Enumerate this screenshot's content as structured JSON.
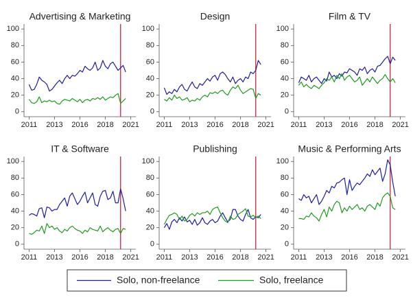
{
  "chart_data": [
    {
      "type": "line",
      "title": "Advertising & Marketing",
      "x": [
        2011,
        2011.25,
        2011.5,
        2011.75,
        2012,
        2012.25,
        2012.5,
        2012.75,
        2013,
        2013.25,
        2013.5,
        2013.75,
        2014,
        2014.25,
        2014.5,
        2014.75,
        2015,
        2015.25,
        2015.5,
        2015.75,
        2016,
        2016.25,
        2016.5,
        2016.75,
        2017,
        2017.25,
        2017.5,
        2017.75,
        2018,
        2018.25,
        2018.5,
        2018.75,
        2019,
        2019.25,
        2019.5,
        2019.75,
        2020,
        2020.25,
        2020.5
      ],
      "series": [
        {
          "name": "Solo, non-freelance",
          "color": "#1c1ca8",
          "values": [
            33,
            26,
            27,
            33,
            42,
            38,
            36,
            33,
            25,
            27,
            31,
            35,
            38,
            34,
            40,
            44,
            40,
            44,
            43,
            46,
            50,
            48,
            55,
            52,
            50,
            53,
            60,
            50,
            53,
            62,
            55,
            52,
            58,
            60,
            55,
            50,
            53,
            56,
            48
          ]
        },
        {
          "name": "Solo, freelance",
          "color": "#1e9a1e",
          "values": [
            15,
            11,
            10,
            12,
            18,
            11,
            13,
            12,
            14,
            12,
            13,
            10,
            9,
            13,
            15,
            14,
            13,
            16,
            14,
            12,
            15,
            11,
            14,
            15,
            13,
            16,
            15,
            17,
            15,
            18,
            14,
            16,
            18,
            17,
            20,
            22,
            10,
            13,
            16
          ]
        }
      ],
      "xlim": [
        2010.5,
        2021.5
      ],
      "xticks": [
        2011,
        {
          "value": 2013.5,
          "label": "2013"
        },
        2016,
        {
          "value": 2018.5,
          "label": "2018"
        },
        2021
      ],
      "ylim": [
        -6,
        106
      ],
      "yticks": [
        0,
        20,
        40,
        60,
        80,
        100
      ],
      "vline": 2020,
      "vline_color": "#c8102e"
    },
    {
      "type": "line",
      "title": "Design",
      "x": [
        2011,
        2011.25,
        2011.5,
        2011.75,
        2012,
        2012.25,
        2012.5,
        2012.75,
        2013,
        2013.25,
        2013.5,
        2013.75,
        2014,
        2014.25,
        2014.5,
        2014.75,
        2015,
        2015.25,
        2015.5,
        2015.75,
        2016,
        2016.25,
        2016.5,
        2016.75,
        2017,
        2017.25,
        2017.5,
        2017.75,
        2018,
        2018.25,
        2018.5,
        2018.75,
        2019,
        2019.25,
        2019.5,
        2019.75,
        2020,
        2020.25,
        2020.5
      ],
      "series": [
        {
          "name": "Solo, non-freelance",
          "color": "#1c1ca8",
          "values": [
            29,
            21,
            24,
            22,
            27,
            24,
            30,
            33,
            27,
            25,
            31,
            36,
            30,
            28,
            34,
            32,
            36,
            40,
            37,
            42,
            44,
            38,
            46,
            48,
            45,
            40,
            36,
            42,
            34,
            38,
            40,
            36,
            42,
            40,
            48,
            46,
            50,
            62,
            57
          ]
        },
        {
          "name": "Solo, freelance",
          "color": "#1e9a1e",
          "values": [
            15,
            13,
            17,
            14,
            20,
            16,
            18,
            14,
            15,
            17,
            12,
            14,
            13,
            16,
            14,
            18,
            20,
            18,
            23,
            22,
            24,
            22,
            25,
            26,
            22,
            20,
            26,
            30,
            28,
            32,
            26,
            22,
            24,
            26,
            28,
            27,
            16,
            22,
            20
          ]
        }
      ],
      "xlim": [
        2010.5,
        2021.5
      ],
      "xticks": [
        2011,
        {
          "value": 2013.5,
          "label": "2013"
        },
        2016,
        {
          "value": 2018.5,
          "label": "2018"
        },
        2021
      ],
      "ylim": [
        -6,
        106
      ],
      "yticks": [
        0,
        20,
        40,
        60,
        80,
        100
      ],
      "vline": 2020,
      "vline_color": "#c8102e"
    },
    {
      "type": "line",
      "title": "Film & TV",
      "x": [
        2011,
        2011.25,
        2011.5,
        2011.75,
        2012,
        2012.25,
        2012.5,
        2012.75,
        2013,
        2013.25,
        2013.5,
        2013.75,
        2014,
        2014.25,
        2014.5,
        2014.75,
        2015,
        2015.25,
        2015.5,
        2015.75,
        2016,
        2016.25,
        2016.5,
        2016.75,
        2017,
        2017.25,
        2017.5,
        2017.75,
        2018,
        2018.25,
        2018.5,
        2018.75,
        2019,
        2019.25,
        2019.5,
        2019.75,
        2020,
        2020.25,
        2020.5
      ],
      "series": [
        {
          "name": "Solo, non-freelance",
          "color": "#1c1ca8",
          "values": [
            35,
            42,
            40,
            38,
            44,
            36,
            40,
            42,
            38,
            34,
            40,
            37,
            48,
            42,
            44,
            40,
            46,
            43,
            48,
            47,
            52,
            50,
            48,
            44,
            52,
            50,
            54,
            46,
            50,
            52,
            48,
            55,
            56,
            60,
            64,
            67,
            58,
            66,
            62
          ]
        },
        {
          "name": "Solo, freelance",
          "color": "#1e9a1e",
          "values": [
            32,
            36,
            30,
            33,
            30,
            28,
            32,
            30,
            28,
            32,
            35,
            40,
            38,
            42,
            36,
            44,
            40,
            46,
            38,
            42,
            44,
            40,
            36,
            38,
            42,
            32,
            36,
            40,
            36,
            42,
            38,
            34,
            38,
            40,
            45,
            40,
            36,
            40,
            35
          ]
        }
      ],
      "xlim": [
        2010.5,
        2021.5
      ],
      "xticks": [
        2011,
        {
          "value": 2013.5,
          "label": "2013"
        },
        2016,
        {
          "value": 2018.5,
          "label": "2018"
        },
        2021
      ],
      "ylim": [
        -6,
        106
      ],
      "yticks": [
        0,
        20,
        40,
        60,
        80,
        100
      ],
      "vline": 2020,
      "vline_color": "#c8102e"
    },
    {
      "type": "line",
      "title": "IT & Software",
      "x": [
        2011,
        2011.25,
        2011.5,
        2011.75,
        2012,
        2012.25,
        2012.5,
        2012.75,
        2013,
        2013.25,
        2013.5,
        2013.75,
        2014,
        2014.25,
        2014.5,
        2014.75,
        2015,
        2015.25,
        2015.5,
        2015.75,
        2016,
        2016.25,
        2016.5,
        2016.75,
        2017,
        2017.25,
        2017.5,
        2017.75,
        2018,
        2018.25,
        2018.5,
        2018.75,
        2019,
        2019.25,
        2019.5,
        2019.75,
        2020,
        2020.25,
        2020.5
      ],
      "series": [
        {
          "name": "Solo, non-freelance",
          "color": "#1c1ca8",
          "values": [
            35,
            37,
            36,
            34,
            43,
            44,
            32,
            45,
            44,
            40,
            42,
            42,
            48,
            52,
            56,
            46,
            58,
            62,
            55,
            48,
            52,
            58,
            63,
            50,
            56,
            62,
            48,
            46,
            58,
            64,
            65,
            54,
            56,
            64,
            50,
            50,
            67,
            55,
            40
          ]
        },
        {
          "name": "Solo, freelance",
          "color": "#1e9a1e",
          "values": [
            13,
            12,
            14,
            17,
            16,
            22,
            13,
            25,
            20,
            22,
            18,
            20,
            16,
            14,
            18,
            16,
            20,
            22,
            19,
            17,
            16,
            13,
            17,
            15,
            20,
            18,
            17,
            16,
            22,
            15,
            18,
            20,
            17,
            15,
            18,
            19,
            13,
            19,
            18
          ]
        }
      ],
      "xlim": [
        2010.5,
        2021.5
      ],
      "xticks": [
        2011,
        {
          "value": 2013.5,
          "label": "2013"
        },
        2016,
        {
          "value": 2018.5,
          "label": "2018"
        },
        2021
      ],
      "ylim": [
        -6,
        106
      ],
      "yticks": [
        0,
        20,
        40,
        60,
        80,
        100
      ],
      "vline": 2020,
      "vline_color": "#c8102e"
    },
    {
      "type": "line",
      "title": "Publishing",
      "x": [
        2011,
        2011.25,
        2011.5,
        2011.75,
        2012,
        2012.25,
        2012.5,
        2012.75,
        2013,
        2013.25,
        2013.5,
        2013.75,
        2014,
        2014.25,
        2014.5,
        2014.75,
        2015,
        2015.25,
        2015.5,
        2015.75,
        2016,
        2016.25,
        2016.5,
        2016.75,
        2017,
        2017.25,
        2017.5,
        2017.75,
        2018,
        2018.25,
        2018.5,
        2018.75,
        2019,
        2019.25,
        2019.5,
        2019.75,
        2020,
        2020.25,
        2020.5
      ],
      "series": [
        {
          "name": "Solo, non-freelance",
          "color": "#1c1ca8",
          "values": [
            20,
            25,
            18,
            27,
            30,
            26,
            32,
            28,
            33,
            27,
            29,
            24,
            30,
            23,
            26,
            32,
            26,
            24,
            28,
            30,
            26,
            28,
            34,
            38,
            32,
            27,
            30,
            42,
            42,
            34,
            30,
            28,
            36,
            42,
            32,
            30,
            33,
            32,
            36
          ]
        },
        {
          "name": "Solo, freelance",
          "color": "#1e9a1e",
          "values": [
            24,
            30,
            35,
            36,
            38,
            36,
            30,
            34,
            28,
            30,
            35,
            37,
            34,
            38,
            36,
            38,
            38,
            40,
            36,
            42,
            44,
            45,
            38,
            32,
            28,
            26,
            34,
            30,
            31,
            36,
            38,
            40,
            43,
            34,
            33,
            35,
            32,
            34,
            31
          ]
        }
      ],
      "xlim": [
        2010.5,
        2021.5
      ],
      "xticks": [
        2011,
        {
          "value": 2013.5,
          "label": "2013"
        },
        2016,
        {
          "value": 2018.5,
          "label": "2018"
        },
        2021
      ],
      "ylim": [
        -6,
        106
      ],
      "yticks": [
        0,
        20,
        40,
        60,
        80,
        100
      ],
      "vline": 2020,
      "vline_color": "#c8102e"
    },
    {
      "type": "line",
      "title": "Music & Performing Arts",
      "x": [
        2011,
        2011.25,
        2011.5,
        2011.75,
        2012,
        2012.25,
        2012.5,
        2012.75,
        2013,
        2013.25,
        2013.5,
        2013.75,
        2014,
        2014.25,
        2014.5,
        2014.75,
        2015,
        2015.25,
        2015.5,
        2015.75,
        2016,
        2016.25,
        2016.5,
        2016.75,
        2017,
        2017.25,
        2017.5,
        2017.75,
        2018,
        2018.25,
        2018.5,
        2018.75,
        2019,
        2019.25,
        2019.5,
        2019.75,
        2020,
        2020.25,
        2020.5
      ],
      "series": [
        {
          "name": "Solo, non-freelance",
          "color": "#1c1ca8",
          "values": [
            55,
            53,
            60,
            56,
            58,
            50,
            55,
            60,
            48,
            52,
            58,
            65,
            62,
            70,
            68,
            74,
            75,
            78,
            80,
            60,
            78,
            65,
            70,
            74,
            72,
            76,
            80,
            85,
            82,
            90,
            84,
            88,
            92,
            76,
            85,
            102,
            96,
            75,
            58
          ]
        },
        {
          "name": "Solo, freelance",
          "color": "#1e9a1e",
          "values": [
            31,
            31,
            30,
            34,
            33,
            38,
            34,
            32,
            28,
            36,
            42,
            33,
            45,
            40,
            48,
            52,
            50,
            38,
            44,
            40,
            46,
            42,
            45,
            48,
            42,
            44,
            40,
            46,
            48,
            45,
            42,
            50,
            46,
            56,
            60,
            62,
            58,
            44,
            42
          ]
        }
      ],
      "xlim": [
        2010.5,
        2021.5
      ],
      "xticks": [
        2011,
        {
          "value": 2013.5,
          "label": "2013"
        },
        2016,
        {
          "value": 2018.5,
          "label": "2018"
        },
        2021
      ],
      "ylim": [
        -6,
        106
      ],
      "yticks": [
        0,
        20,
        40,
        60,
        80,
        100
      ],
      "vline": 2020,
      "vline_color": "#c8102e"
    }
  ]
}
